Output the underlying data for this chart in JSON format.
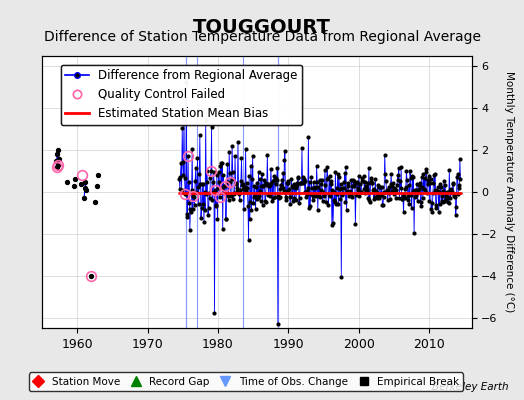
{
  "title": "TOUGGOURT",
  "subtitle": "Difference of Station Temperature Data from Regional Average",
  "ylabel": "Monthly Temperature Anomaly Difference (°C)",
  "xlabel_note": "Berkeley Earth",
  "xlim": [
    1955,
    2016
  ],
  "ylim": [
    -6.5,
    6.5
  ],
  "yticks": [
    -6,
    -4,
    -2,
    0,
    2,
    4,
    6
  ],
  "xticks": [
    1960,
    1970,
    1980,
    1990,
    2000,
    2010
  ],
  "background_color": "#e8e8e8",
  "plot_bg_color": "#ffffff",
  "grid_color": "#d0d0d0",
  "main_line_color": "#0000ff",
  "main_dot_color": "#000000",
  "bias_line_color": "#ff0000",
  "qc_failed_color": "#ff99cc",
  "obs_change_color": "#6699ff",
  "seed": 42,
  "bias_value": -0.05,
  "title_fontsize": 14,
  "subtitle_fontsize": 10,
  "tick_fontsize": 9,
  "legend_fontsize": 8.5
}
